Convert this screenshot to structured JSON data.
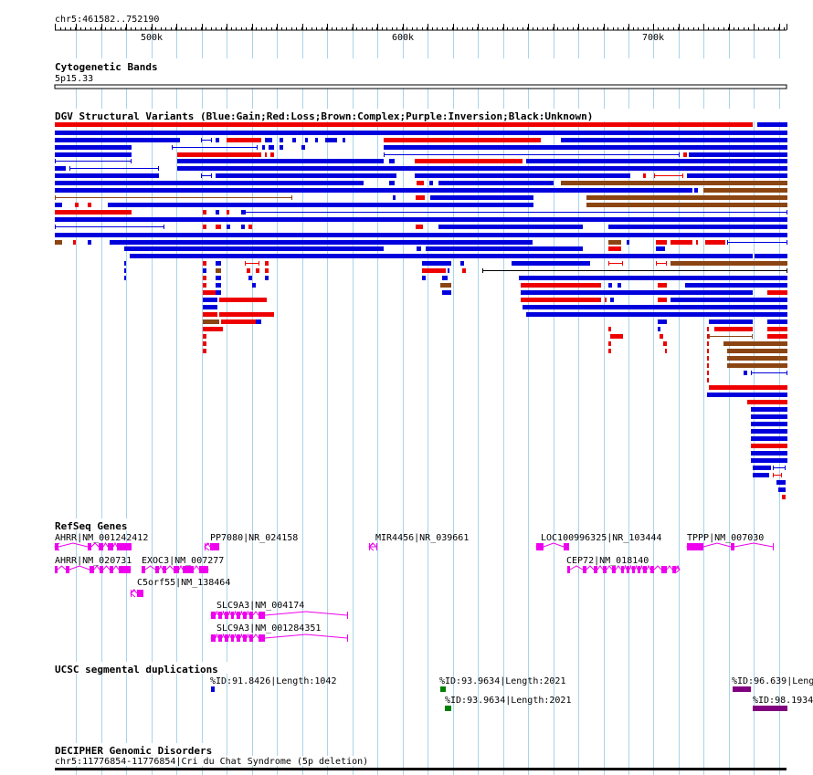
{
  "colors": {
    "gain": "#0000dd",
    "loss": "#ee0000",
    "complex": "#8b4513",
    "inversion": "#800080",
    "unknown": "#000000",
    "refseq": "#ee00ee",
    "segdup_green": "#008000",
    "segdup_purple": "#800080",
    "segdup_blue": "#0000dd",
    "grid": "#a9d4ec"
  },
  "ruler": {
    "label": "chr5:461582..752190",
    "start": 461582,
    "end": 752190,
    "ticks": [
      {
        "label": "500k",
        "pos": 500000
      },
      {
        "label": "600k",
        "pos": 600000
      },
      {
        "label": "700k",
        "pos": 700000
      }
    ]
  },
  "tracks": {
    "cytoband": {
      "title": "Cytogenetic Bands",
      "band": "5p15.33"
    },
    "dgv": {
      "title": "DGV Structural Variants (Blue:Gain;Red:Loss;Brown:Complex;Purple:Inversion;Black:Unknown)"
    },
    "refseq": {
      "title": "RefSeq Genes",
      "genes": [
        {
          "label": "AHRR|NM_001242412",
          "icon": "reverse-strand-gene-icon"
        },
        {
          "label": "AHRR|NM_020731",
          "icon": "forward-strand-gene-icon"
        },
        {
          "label": "EXOC3|NM_007277",
          "icon": "forward-strand-gene-icon"
        },
        {
          "label": "C5orf55|NM_138464",
          "icon": "reverse-strand-gene-icon"
        },
        {
          "label": "PP7080|NR_024158",
          "icon": "reverse-strand-gene-icon"
        },
        {
          "label": "SLC9A3|NM_004174",
          "icon": "reverse-strand-gene-icon"
        },
        {
          "label": "SLC9A3|NM_001284351",
          "icon": "reverse-strand-gene-icon"
        },
        {
          "label": "MIR4456|NR_039661",
          "icon": "reverse-strand-gene-icon"
        },
        {
          "label": "LOC100996325|NR_103444",
          "icon": "reverse-strand-gene-icon"
        },
        {
          "label": "CEP72|NM_018140",
          "icon": "forward-strand-gene-icon"
        },
        {
          "label": "TPPP|NM_007030",
          "icon": "reverse-strand-gene-icon"
        }
      ]
    },
    "segdup": {
      "title": "UCSC segmental duplications",
      "items": [
        {
          "label": "%ID:91.8426|Length:1042",
          "color": "#0000dd"
        },
        {
          "label": "%ID:93.9634|Length:2021",
          "color": "#008000"
        },
        {
          "label": "%ID:93.9634|Length:2021",
          "color": "#008000"
        },
        {
          "label": "%ID:96.639|Leng",
          "color": "#800080"
        },
        {
          "label": "%ID:98.1934",
          "color": "#800080"
        }
      ]
    },
    "decipher": {
      "title": "DECIPHER Genomic Disorders",
      "item": "chr5:11776854-11776854|Cri du Chat Syndrome (5p deletion)"
    }
  }
}
